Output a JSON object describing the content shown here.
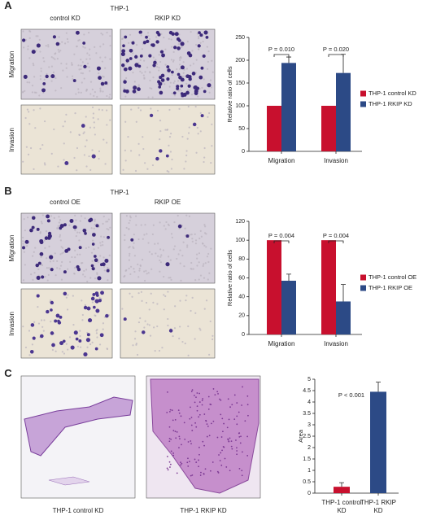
{
  "panel_labels": [
    "A",
    "B",
    "C"
  ],
  "panel_a": {
    "title": "THP-1",
    "columns": [
      "control KD",
      "RKIP KD"
    ],
    "rows": [
      "Migration",
      "Invasion"
    ]
  },
  "panel_b": {
    "title": "THP-1",
    "columns": [
      "control OE",
      "RKIP OE"
    ],
    "rows": [
      "Migration",
      "Invasion"
    ]
  },
  "panel_c": {
    "captions": [
      "THP-1 control KD",
      "THP-1 RKIP KD"
    ]
  },
  "chart_data": [
    {
      "type": "bar",
      "ylabel": "Relative ratio of cells",
      "categories": [
        "Migration",
        "Invasion"
      ],
      "series": [
        {
          "name": "THP-1 control KD",
          "color": "#c8102e",
          "values": [
            100,
            100
          ]
        },
        {
          "name": "THP-1 RKIP KD",
          "color": "#2c4a86",
          "values": [
            194,
            172
          ],
          "errors": [
            13,
            41
          ]
        }
      ],
      "ylim": [
        0,
        250
      ],
      "yticks": [
        0,
        50,
        100,
        150,
        200,
        250
      ],
      "annotations": [
        "P = 0.010",
        "P = 0.020"
      ],
      "legend": "right"
    },
    {
      "type": "bar",
      "ylabel": "Relative ratio of cells",
      "categories": [
        "Migration",
        "Invasion"
      ],
      "series": [
        {
          "name": "THP-1 control OE",
          "color": "#c8102e",
          "values": [
            100,
            100
          ]
        },
        {
          "name": "THP-1 RKIP OE",
          "color": "#2c4a86",
          "values": [
            57,
            35
          ],
          "errors": [
            7,
            18
          ]
        }
      ],
      "ylim": [
        0,
        120
      ],
      "yticks": [
        0,
        20,
        40,
        60,
        80,
        100,
        120
      ],
      "annotations": [
        "P = 0.004",
        "P = 0.004"
      ],
      "legend": "right"
    },
    {
      "type": "bar",
      "ylabel": "Area",
      "categories": [
        "THP-1 control KD",
        "THP-1 RKIP KD"
      ],
      "series": [
        {
          "colors": [
            "#c8102e",
            "#2c4a86"
          ],
          "values": [
            0.28,
            4.45
          ],
          "errors": [
            0.18,
            0.42
          ]
        }
      ],
      "ylim": [
        0,
        5
      ],
      "yticks": [
        0,
        0.5,
        1,
        1.5,
        2,
        2.5,
        3,
        3.5,
        4,
        4.5,
        5
      ],
      "annotations": [
        "P < 0.001"
      ]
    }
  ]
}
